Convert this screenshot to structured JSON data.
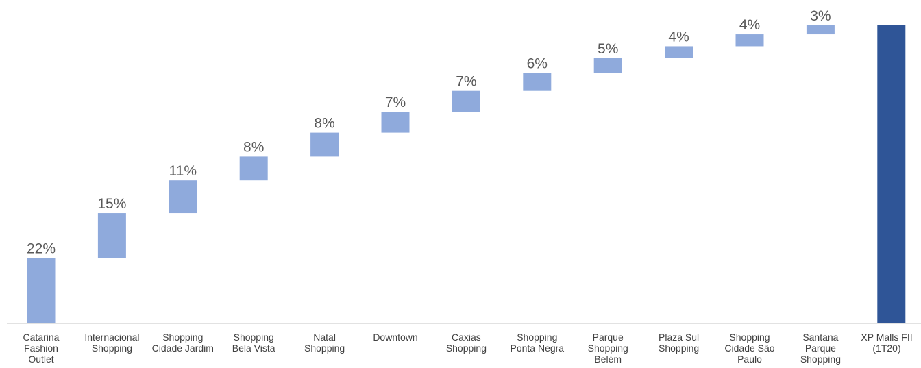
{
  "chart_data": {
    "type": "bar",
    "subtype": "waterfall",
    "categories": [
      [
        "Catarina",
        "Fashion",
        "Outlet"
      ],
      [
        "Internacional",
        "Shopping"
      ],
      [
        "Shopping",
        "Cidade Jardim"
      ],
      [
        "Shopping",
        "Bela Vista"
      ],
      [
        "Natal",
        "Shopping"
      ],
      [
        "Downtown"
      ],
      [
        "Caxias",
        "Shopping"
      ],
      [
        "Shopping",
        "Ponta Negra"
      ],
      [
        "Parque",
        "Shopping",
        "Belém"
      ],
      [
        "Plaza Sul",
        "Shopping"
      ],
      [
        "Shopping",
        "Cidade São",
        "Paulo"
      ],
      [
        "Santana",
        "Parque",
        "Shopping"
      ],
      [
        "XP Malls FII",
        "(1T20)"
      ]
    ],
    "values": [
      22,
      15,
      11,
      8,
      8,
      7,
      7,
      6,
      5,
      4,
      4,
      3,
      100
    ],
    "value_labels": [
      "22%",
      "15%",
      "11%",
      "8%",
      "8%",
      "7%",
      "7%",
      "6%",
      "5%",
      "4%",
      "4%",
      "3%",
      ""
    ],
    "is_total": [
      false,
      false,
      false,
      false,
      false,
      false,
      false,
      false,
      false,
      false,
      false,
      false,
      true
    ],
    "unit": "%",
    "ylim": [
      0,
      100
    ],
    "grid": false,
    "legend": "none",
    "colors": {
      "increment": "#8faadc",
      "total": "#2f5597",
      "axis": "#d9d9d9",
      "value_text": "#595959",
      "category_text": "#404040"
    }
  }
}
